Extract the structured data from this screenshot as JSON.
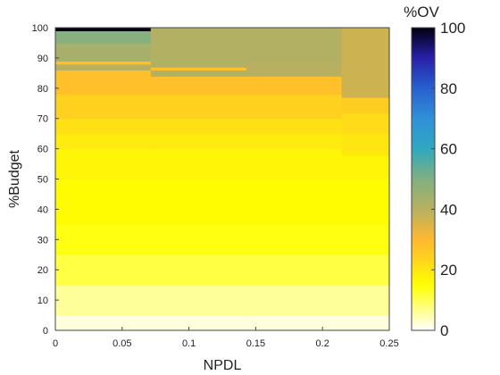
{
  "chart_data": {
    "type": "heatmap",
    "title": "",
    "xlabel": "NPDL",
    "ylabel": "%Budget",
    "xlim": [
      0,
      0.25
    ],
    "ylim": [
      0,
      100
    ],
    "x_ticks": [
      0,
      0.05,
      0.1,
      0.15,
      0.2,
      0.25
    ],
    "x_tick_labels": [
      "0",
      "0.05",
      "0.1",
      "0.15",
      "0.2",
      "0.25"
    ],
    "y_ticks": [
      0,
      10,
      20,
      30,
      40,
      50,
      60,
      70,
      80,
      90,
      100
    ],
    "y_tick_labels": [
      "0",
      "10",
      "20",
      "30",
      "40",
      "50",
      "60",
      "70",
      "80",
      "90",
      "100"
    ],
    "colorbar": {
      "title": "%OV",
      "range": [
        0,
        100
      ],
      "ticks": [
        0,
        20,
        40,
        60,
        80,
        100
      ],
      "tick_labels": [
        "0",
        "20",
        "40",
        "60",
        "80",
        "100"
      ],
      "colormap_stops": [
        {
          "value": 0,
          "color": "#ffffff"
        },
        {
          "value": 15,
          "color": "#ffff00"
        },
        {
          "value": 25,
          "color": "#ffcc22"
        },
        {
          "value": 30,
          "color": "#ffb830"
        },
        {
          "value": 40,
          "color": "#b8b060"
        },
        {
          "value": 50,
          "color": "#80b080"
        },
        {
          "value": 60,
          "color": "#30a8c0"
        },
        {
          "value": 70,
          "color": "#3090d8"
        },
        {
          "value": 80,
          "color": "#2860d0"
        },
        {
          "value": 90,
          "color": "#2820a8"
        },
        {
          "value": 100,
          "color": "#000010"
        }
      ]
    },
    "columns": [
      {
        "x_range": [
          0,
          0.0714
        ],
        "bands": [
          {
            "y_range": [
              0,
              5
            ],
            "value": 2
          },
          {
            "y_range": [
              5,
              15
            ],
            "value": 6
          },
          {
            "y_range": [
              15,
              25
            ],
            "value": 11
          },
          {
            "y_range": [
              25,
              35
            ],
            "value": 14
          },
          {
            "y_range": [
              35,
              50
            ],
            "value": 15.5
          },
          {
            "y_range": [
              50,
              60
            ],
            "value": 17
          },
          {
            "y_range": [
              60,
              65
            ],
            "value": 19
          },
          {
            "y_range": [
              65,
              70
            ],
            "value": 21
          },
          {
            "y_range": [
              70,
              78
            ],
            "value": 24
          },
          {
            "y_range": [
              78,
              86
            ],
            "value": 28
          },
          {
            "y_range": [
              86,
              88
            ],
            "value": 40
          },
          {
            "y_range": [
              88,
              89
            ],
            "value": 28
          },
          {
            "y_range": [
              89,
              95
            ],
            "value": 43
          },
          {
            "y_range": [
              95,
              99
            ],
            "value": 49
          },
          {
            "y_range": [
              99,
              100
            ],
            "value": 100
          }
        ]
      },
      {
        "x_range": [
          0.0714,
          0.1429
        ],
        "bands": [
          {
            "y_range": [
              0,
              5
            ],
            "value": 2
          },
          {
            "y_range": [
              5,
              15
            ],
            "value": 6
          },
          {
            "y_range": [
              15,
              25
            ],
            "value": 11
          },
          {
            "y_range": [
              25,
              35
            ],
            "value": 14
          },
          {
            "y_range": [
              35,
              50
            ],
            "value": 15.5
          },
          {
            "y_range": [
              50,
              60
            ],
            "value": 17
          },
          {
            "y_range": [
              60,
              65
            ],
            "value": 19
          },
          {
            "y_range": [
              65,
              70
            ],
            "value": 21
          },
          {
            "y_range": [
              70,
              78
            ],
            "value": 24
          },
          {
            "y_range": [
              78,
              84
            ],
            "value": 28
          },
          {
            "y_range": [
              84,
              86
            ],
            "value": 41
          },
          {
            "y_range": [
              86,
              87
            ],
            "value": 28
          },
          {
            "y_range": [
              87,
              100
            ],
            "value": 41
          }
        ]
      },
      {
        "x_range": [
          0.1429,
          0.2143
        ],
        "bands": [
          {
            "y_range": [
              0,
              5
            ],
            "value": 2
          },
          {
            "y_range": [
              5,
              15
            ],
            "value": 6
          },
          {
            "y_range": [
              15,
              25
            ],
            "value": 11
          },
          {
            "y_range": [
              25,
              35
            ],
            "value": 14
          },
          {
            "y_range": [
              35,
              50
            ],
            "value": 15.5
          },
          {
            "y_range": [
              50,
              60
            ],
            "value": 17
          },
          {
            "y_range": [
              60,
              65
            ],
            "value": 19
          },
          {
            "y_range": [
              65,
              70
            ],
            "value": 21
          },
          {
            "y_range": [
              70,
              78
            ],
            "value": 24
          },
          {
            "y_range": [
              78,
              84
            ],
            "value": 28
          },
          {
            "y_range": [
              84,
              89
            ],
            "value": 40
          },
          {
            "y_range": [
              89,
              100
            ],
            "value": 41
          }
        ]
      },
      {
        "x_range": [
          0.2143,
          0.25
        ],
        "bands": [
          {
            "y_range": [
              0,
              5
            ],
            "value": 2
          },
          {
            "y_range": [
              5,
              15
            ],
            "value": 6
          },
          {
            "y_range": [
              15,
              25
            ],
            "value": 11
          },
          {
            "y_range": [
              25,
              35
            ],
            "value": 14
          },
          {
            "y_range": [
              35,
              50
            ],
            "value": 15.5
          },
          {
            "y_range": [
              50,
              58
            ],
            "value": 17
          },
          {
            "y_range": [
              58,
              65
            ],
            "value": 20
          },
          {
            "y_range": [
              65,
              72
            ],
            "value": 22
          },
          {
            "y_range": [
              72,
              77
            ],
            "value": 25
          },
          {
            "y_range": [
              77,
              100
            ],
            "value": 37
          }
        ]
      }
    ]
  }
}
